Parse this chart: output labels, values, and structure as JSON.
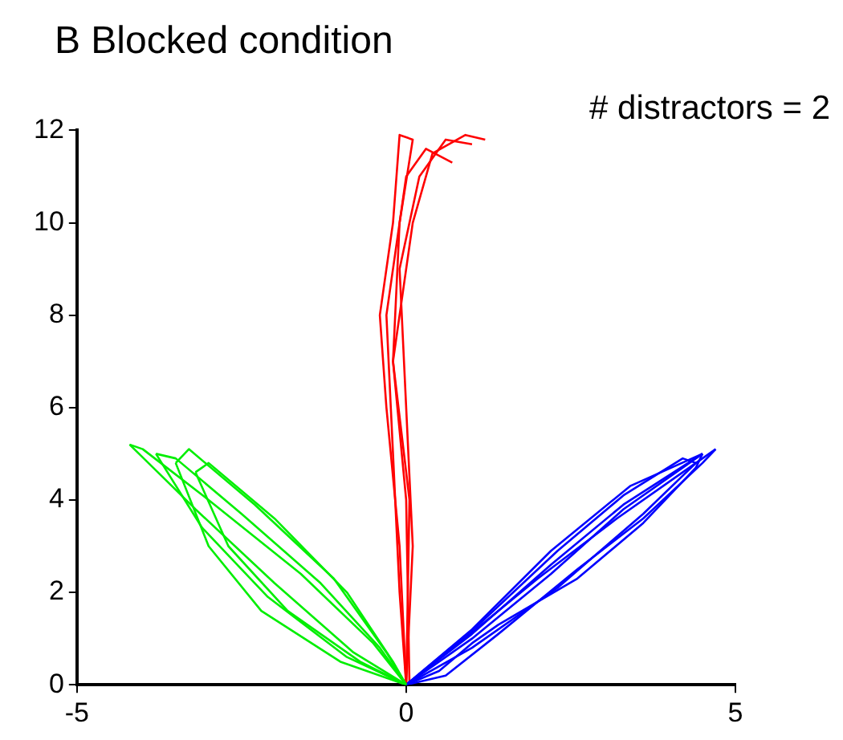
{
  "chart_data": {
    "type": "line",
    "title": "B Blocked condition",
    "annotations": [
      "# distractors = 2"
    ],
    "xlim": [
      -5,
      5
    ],
    "xticks": [
      -5,
      0,
      5
    ],
    "ylim": [
      0,
      12
    ],
    "yticks": [
      0,
      2,
      4,
      6,
      8,
      10,
      12
    ],
    "grid": false,
    "legend": false,
    "marker": "none",
    "line_style": "solid",
    "series": [
      {
        "color": "#00ee00",
        "x": [
          -4.2,
          -3.2,
          -2,
          -0.8,
          0
        ],
        "values": [
          5.2,
          3.8,
          2.2,
          0.7,
          0
        ]
      },
      {
        "color": "#00ee00",
        "x": [
          -4.2,
          -4.0,
          -3.0,
          -1.6,
          -0.5,
          0
        ],
        "values": [
          5.2,
          5.1,
          4.0,
          2.4,
          0.9,
          0
        ]
      },
      {
        "color": "#00ee00",
        "x": [
          -3.8,
          -3.1,
          -2.1,
          -0.9,
          0
        ],
        "values": [
          5.0,
          3.4,
          1.9,
          0.6,
          0
        ]
      },
      {
        "color": "#00ee00",
        "x": [
          -3.8,
          -3.5,
          -2.5,
          -1.3,
          -0.4,
          0
        ],
        "values": [
          5.0,
          4.9,
          3.7,
          2.2,
          0.8,
          0
        ]
      },
      {
        "color": "#00ee00",
        "x": [
          -3.5,
          -3.0,
          -2.2,
          -1,
          0
        ],
        "values": [
          4.8,
          3.0,
          1.6,
          0.5,
          0
        ]
      },
      {
        "color": "#00ee00",
        "x": [
          -3.5,
          -3.3,
          -2.3,
          -1.1,
          -0.3,
          0
        ],
        "values": [
          4.8,
          5.1,
          3.9,
          2.3,
          0.7,
          0
        ]
      },
      {
        "color": "#00ee00",
        "x": [
          -3.2,
          -2.7,
          -1.8,
          -0.7,
          0
        ],
        "values": [
          4.6,
          3.0,
          1.6,
          0.5,
          0
        ]
      },
      {
        "color": "#00ee00",
        "x": [
          -3.2,
          -3.0,
          -2.0,
          -0.9,
          -0.2,
          0
        ],
        "values": [
          4.6,
          4.8,
          3.6,
          2.0,
          0.5,
          0
        ]
      },
      {
        "color": "#0000ff",
        "x": [
          0,
          0.8,
          2,
          3.2,
          4.2,
          4.7
        ],
        "values": [
          0,
          0.9,
          2.3,
          3.6,
          4.6,
          5.1
        ]
      },
      {
        "color": "#0000ff",
        "x": [
          0,
          0.6,
          1.4,
          2.6,
          3.6,
          4.5,
          4.7
        ],
        "values": [
          0,
          0.2,
          1.1,
          2.5,
          3.6,
          4.8,
          5.1
        ]
      },
      {
        "color": "#0000ff",
        "x": [
          0,
          1,
          2.2,
          3.3,
          4.5
        ],
        "values": [
          0,
          1.1,
          2.6,
          3.9,
          5.0
        ]
      },
      {
        "color": "#0000ff",
        "x": [
          0,
          1.0,
          2.2,
          3.3,
          4.3,
          4.5
        ],
        "values": [
          0,
          1.0,
          2.4,
          3.8,
          4.8,
          5.0
        ]
      },
      {
        "color": "#0000ff",
        "x": [
          0,
          1.1,
          2.3,
          3.3,
          4.2,
          4.4
        ],
        "values": [
          0,
          1.3,
          2.9,
          4.1,
          4.9,
          4.8
        ]
      },
      {
        "color": "#0000ff",
        "x": [
          0,
          1.0,
          2.3,
          3.6,
          4.4
        ],
        "values": [
          0,
          0.8,
          2.1,
          3.7,
          4.8
        ]
      },
      {
        "color": "#0000ff",
        "x": [
          0,
          1,
          2.2,
          3.4,
          4.5
        ],
        "values": [
          0,
          1.2,
          2.9,
          4.3,
          5.0
        ]
      },
      {
        "color": "#0000ff",
        "x": [
          0,
          0.5,
          1,
          1.4,
          2.6,
          3.6,
          4.4,
          4.5
        ],
        "values": [
          0,
          0.3,
          0.9,
          1.3,
          2.3,
          3.5,
          4.7,
          5.0
        ]
      },
      {
        "color": "#ff0000",
        "x": [
          0,
          -0.1,
          -0.3,
          -0.4,
          -0.2,
          -0.1,
          0.1,
          -0.1,
          -0.2,
          0,
          0.05
        ],
        "values": [
          0,
          3,
          6,
          8,
          10,
          11.9,
          11.8,
          10,
          7,
          4,
          0
        ]
      },
      {
        "color": "#ff0000",
        "x": [
          0,
          0.1,
          0,
          -0.1,
          0.2,
          0.6,
          1.0
        ],
        "values": [
          0,
          3,
          6,
          9,
          11,
          11.8,
          11.7
        ]
      },
      {
        "color": "#ff0000",
        "x": [
          0,
          0.05,
          -0.2,
          0.1,
          0.4,
          0.9,
          1.2
        ],
        "values": [
          0,
          4,
          7,
          10,
          11.5,
          11.9,
          11.8
        ]
      },
      {
        "color": "#ff0000",
        "x": [
          0,
          -0.1,
          -0.2,
          -0.3,
          0,
          0.3,
          0.7
        ],
        "values": [
          0,
          2,
          5,
          8,
          11,
          11.6,
          11.3
        ]
      }
    ]
  }
}
